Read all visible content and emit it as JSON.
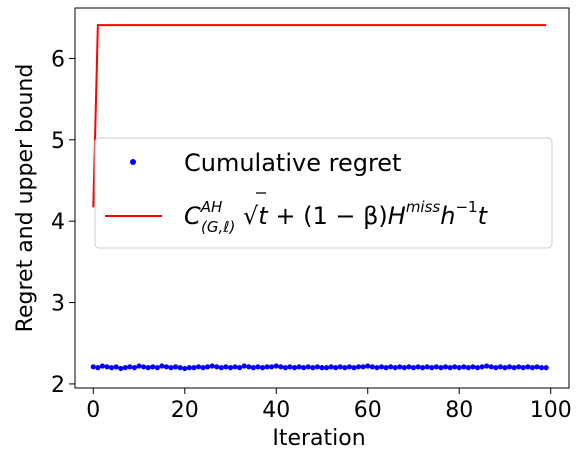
{
  "chart_data": {
    "type": "line",
    "xlabel": "Iteration",
    "ylabel": "Regret and upper bound",
    "xlim": [
      -4,
      104
    ],
    "ylim": [
      1.95,
      6.62
    ],
    "xticks": [
      0,
      20,
      40,
      60,
      80,
      100
    ],
    "yticks": [
      2,
      3,
      4,
      5,
      6
    ],
    "xtick_labels": [
      "0",
      "20",
      "40",
      "60",
      "80",
      "100"
    ],
    "ytick_labels": [
      "2",
      "3",
      "4",
      "5",
      "6"
    ],
    "grid": false,
    "legend_position": "center-right",
    "series": [
      {
        "name": "Cumulative regret",
        "kind": "scatter",
        "color": "#0000ff",
        "x_start": 0,
        "x_end": 99,
        "values": [
          2.21,
          2.2,
          2.22,
          2.21,
          2.2,
          2.21,
          2.19,
          2.2,
          2.21,
          2.2,
          2.22,
          2.21,
          2.2,
          2.21,
          2.2,
          2.22,
          2.21,
          2.2,
          2.21,
          2.2,
          2.19,
          2.2,
          2.2,
          2.21,
          2.2,
          2.21,
          2.22,
          2.21,
          2.2,
          2.21,
          2.2,
          2.21,
          2.2,
          2.22,
          2.21,
          2.2,
          2.21,
          2.2,
          2.21,
          2.21,
          2.22,
          2.21,
          2.2,
          2.21,
          2.2,
          2.21,
          2.2,
          2.21,
          2.2,
          2.21,
          2.2,
          2.2,
          2.21,
          2.2,
          2.21,
          2.2,
          2.21,
          2.2,
          2.21,
          2.21,
          2.22,
          2.21,
          2.2,
          2.21,
          2.2,
          2.21,
          2.2,
          2.21,
          2.2,
          2.21,
          2.2,
          2.21,
          2.2,
          2.21,
          2.2,
          2.21,
          2.2,
          2.21,
          2.2,
          2.21,
          2.2,
          2.21,
          2.2,
          2.21,
          2.2,
          2.21,
          2.22,
          2.21,
          2.2,
          2.21,
          2.2,
          2.21,
          2.2,
          2.21,
          2.2,
          2.21,
          2.2,
          2.21,
          2.2,
          2.2
        ]
      },
      {
        "name": "C_(G,ℓ)^AH √t + (1 − β) H^miss h^−1 t",
        "kind": "line",
        "color": "#ff0000",
        "x": [
          0,
          1,
          99
        ],
        "y": [
          4.17,
          6.41,
          6.41
        ]
      }
    ]
  },
  "legend": {
    "entry1": "Cumulative regret",
    "entry2_C": "C",
    "entry2_AH": "AH",
    "entry2_Gl": "(G,ℓ)",
    "entry2_sqrt": "√",
    "entry2_t": "t",
    "entry2_mid": " + (1 − β)",
    "entry2_H": "H",
    "entry2_miss": "miss",
    "entry2_h": "h",
    "entry2_neg1": "−1",
    "entry2_t2": "t"
  }
}
